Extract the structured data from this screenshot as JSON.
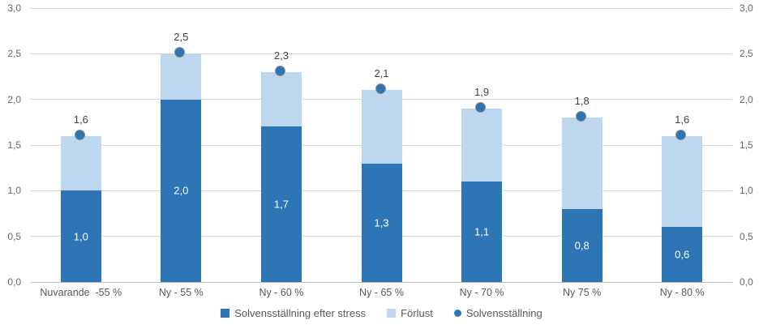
{
  "chart_data": {
    "type": "bar",
    "subtype": "stacked-bars-with-point-markers",
    "title": "",
    "xlabel": "",
    "ylabel": "",
    "categories": [
      "Nuvarande  -55 %",
      "Ny - 55 %",
      "Ny - 60 %",
      "Ny - 65 %",
      "Ny - 70 %",
      "Ny 75 %",
      "Ny - 80 %"
    ],
    "series": [
      {
        "name": "Solvensställning efter stress",
        "role": "stacked-bar-bottom",
        "values": [
          1.0,
          2.0,
          1.7,
          1.3,
          1.1,
          0.8,
          0.6
        ],
        "labels": [
          "1,0",
          "2,0",
          "1,7",
          "1,3",
          "1,1",
          "0,8",
          "0,6"
        ],
        "color": "#2e75b6"
      },
      {
        "name": "Förlust",
        "role": "stacked-bar-top",
        "values": [
          0.6,
          0.5,
          0.6,
          0.8,
          0.8,
          1.0,
          1.0
        ],
        "labels": [],
        "color": "#bdd7ee"
      },
      {
        "name": "Solvensställning",
        "role": "point-marker",
        "values": [
          1.6,
          2.5,
          2.3,
          2.1,
          1.9,
          1.8,
          1.6
        ],
        "labels": [
          "1,6",
          "2,5",
          "2,3",
          "2,1",
          "1,9",
          "1,8",
          "1,6"
        ],
        "color": "#2e75b6",
        "marker_ring_color": "#8c8c8c"
      }
    ],
    "ylim": [
      0,
      3
    ],
    "ytick_step": 0.5,
    "ytick_labels": [
      "0,0",
      "0,5",
      "1,0",
      "1,5",
      "2,0",
      "2,5",
      "3,0"
    ],
    "y_axis_sides": [
      "left",
      "right"
    ],
    "grid": true,
    "gridline_color": "#d9d9d9",
    "axis_line_color": "#bfbfbf",
    "legend_position": "bottom"
  }
}
